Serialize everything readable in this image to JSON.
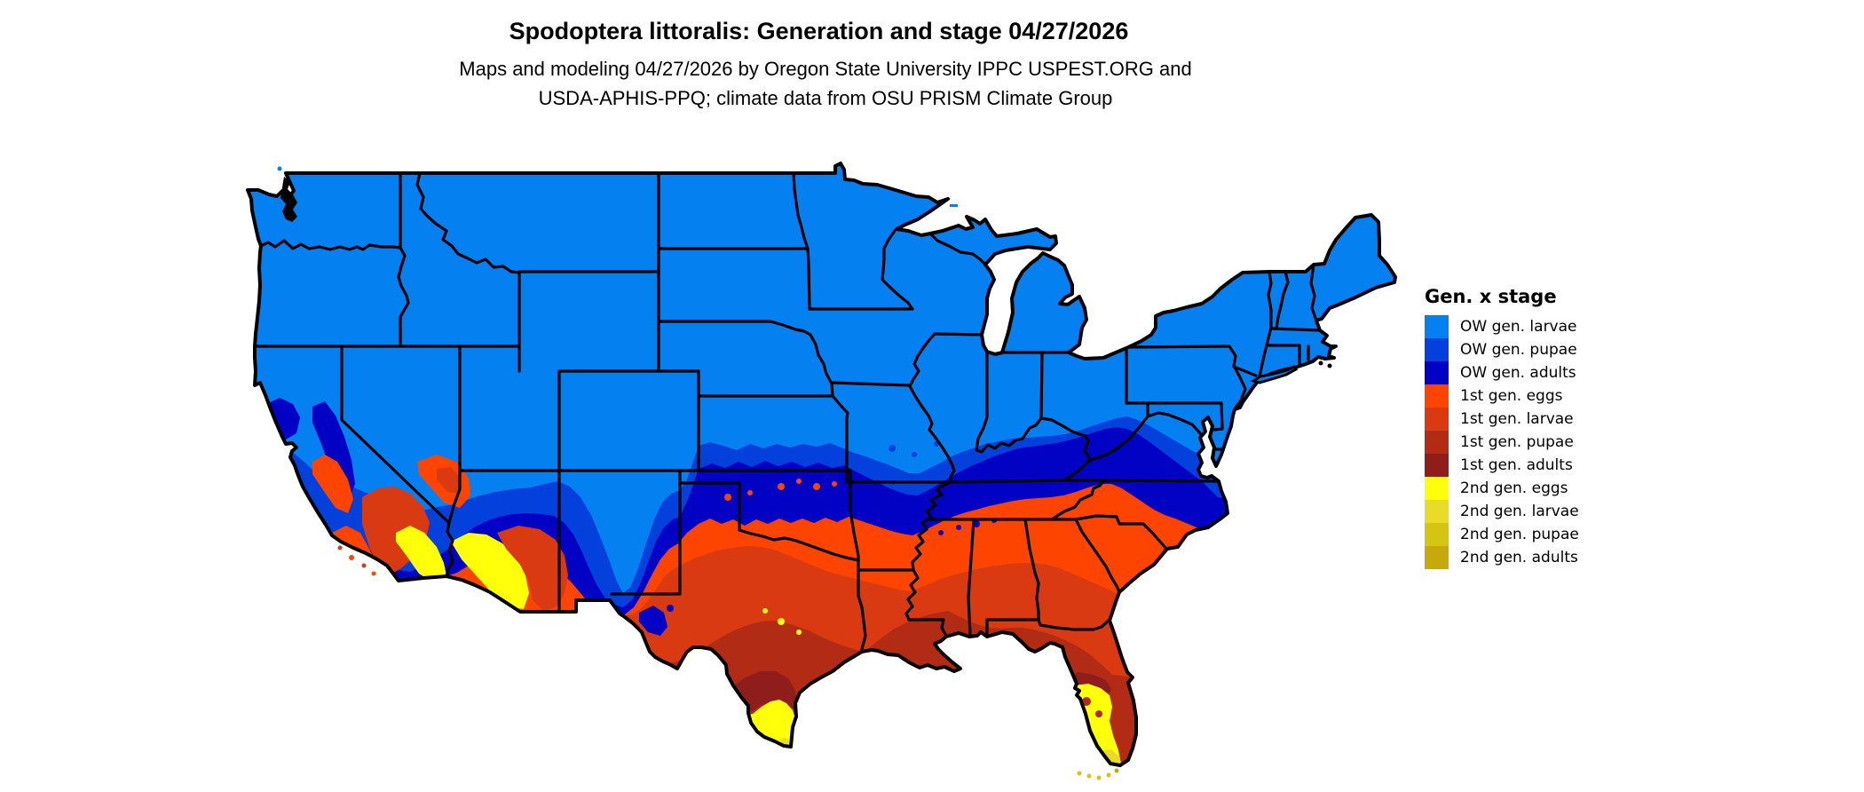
{
  "header": {
    "title": "Spodoptera littoralis: Generation and stage 04/27/2026",
    "subtitle_line1": "Maps and modeling 04/27/2026 by Oregon State University IPPC USPEST.ORG and",
    "subtitle_line2": "USDA-APHIS-PPQ; climate data from OSU PRISM Climate Group"
  },
  "legend": {
    "title": "Gen. x stage",
    "items": [
      {
        "label": "OW gen. larvae",
        "color": "#0580F0"
      },
      {
        "label": "OW gen. pupae",
        "color": "#0441DC"
      },
      {
        "label": "OW gen. adults",
        "color": "#0202C4"
      },
      {
        "label": "1st gen. eggs",
        "color": "#FE4401"
      },
      {
        "label": "1st gen. larvae",
        "color": "#D93A11"
      },
      {
        "label": "1st gen. pupae",
        "color": "#B12B15"
      },
      {
        "label": "1st gen. adults",
        "color": "#8E1D1C"
      },
      {
        "label": "2nd gen. eggs",
        "color": "#FFFF0A"
      },
      {
        "label": "2nd gen. larvae",
        "color": "#E8DC28"
      },
      {
        "label": "2nd gen. pupae",
        "color": "#D5C513"
      },
      {
        "label": "2nd gen. adults",
        "color": "#C8A90B"
      }
    ]
  },
  "map": {
    "region": "Continental United States choropleth of Spodoptera littoralis generation and life stage",
    "north_color_meaning": "OW gen. larvae (blue) across the northern states",
    "south_color_meaning": "1st generation (oranges/reds) across the south; 2nd gen. eggs (yellow) in south Texas, south Florida and southwest Arizona"
  }
}
